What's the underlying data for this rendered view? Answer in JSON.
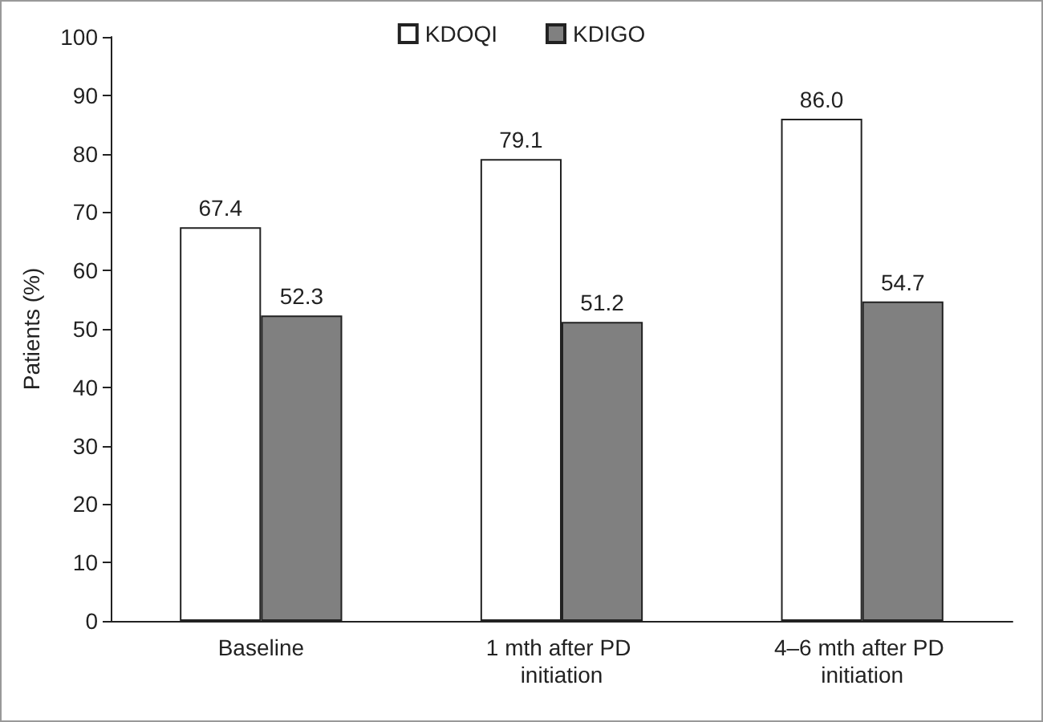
{
  "chart_data": {
    "type": "bar",
    "ylabel": "Patients (%)",
    "categories": [
      "Baseline",
      "1 mth after PD initiation",
      "4–6 mth after PD initiation"
    ],
    "series": [
      {
        "name": "KDOQI",
        "color": "#ffffff",
        "values": [
          67.4,
          79.1,
          86.0
        ]
      },
      {
        "name": "KDIGO",
        "color": "#808080",
        "values": [
          52.3,
          51.2,
          54.7
        ]
      }
    ],
    "value_labels": [
      [
        "67.4",
        "79.1",
        "86.0"
      ],
      [
        "52.3",
        "51.2",
        "54.7"
      ]
    ],
    "ylim": [
      0,
      100
    ],
    "yticks": [
      0,
      10,
      20,
      30,
      40,
      50,
      60,
      70,
      80,
      90,
      100
    ],
    "grid": false,
    "legend": "top"
  }
}
